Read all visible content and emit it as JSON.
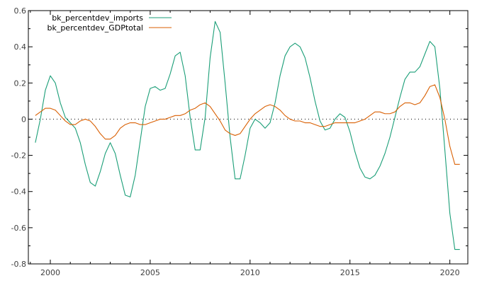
{
  "chart_data": {
    "type": "line",
    "title": "",
    "xlabel": "",
    "ylabel": "",
    "xlim": [
      1998.9,
      2020.9
    ],
    "ylim": [
      -0.8,
      0.6
    ],
    "x_ticks": [
      2000,
      2005,
      2010,
      2015,
      2020
    ],
    "y_ticks": [
      -0.8,
      -0.6,
      -0.4,
      -0.2,
      0,
      0.2,
      0.4,
      0.6
    ],
    "x_tick_labels": [
      "2000",
      "2005",
      "2010",
      "2015",
      "2020"
    ],
    "y_tick_labels": [
      "-0.8",
      "-0.6",
      "-0.4",
      "-0.2",
      "0",
      "0.2",
      "0.4",
      "0.6"
    ],
    "grid": false,
    "zero_line": "dotted",
    "legend_position": "top-left",
    "series": [
      {
        "name": "bk_percentdev_imports",
        "color": "#1a9e77",
        "points": [
          [
            1999.25,
            -0.13
          ],
          [
            1999.5,
            0.0
          ],
          [
            1999.75,
            0.16
          ],
          [
            2000.0,
            0.24
          ],
          [
            2000.25,
            0.2
          ],
          [
            2000.5,
            0.09
          ],
          [
            2000.75,
            0.01
          ],
          [
            2001.0,
            -0.02
          ],
          [
            2001.25,
            -0.05
          ],
          [
            2001.5,
            -0.13
          ],
          [
            2001.75,
            -0.25
          ],
          [
            2002.0,
            -0.35
          ],
          [
            2002.25,
            -0.37
          ],
          [
            2002.5,
            -0.29
          ],
          [
            2002.75,
            -0.19
          ],
          [
            2003.0,
            -0.13
          ],
          [
            2003.25,
            -0.19
          ],
          [
            2003.5,
            -0.31
          ],
          [
            2003.75,
            -0.42
          ],
          [
            2004.0,
            -0.43
          ],
          [
            2004.25,
            -0.31
          ],
          [
            2004.5,
            -0.12
          ],
          [
            2004.75,
            0.07
          ],
          [
            2005.0,
            0.17
          ],
          [
            2005.25,
            0.18
          ],
          [
            2005.5,
            0.16
          ],
          [
            2005.75,
            0.17
          ],
          [
            2006.0,
            0.25
          ],
          [
            2006.25,
            0.35
          ],
          [
            2006.5,
            0.37
          ],
          [
            2006.75,
            0.24
          ],
          [
            2007.0,
            0.01
          ],
          [
            2007.25,
            -0.17
          ],
          [
            2007.5,
            -0.17
          ],
          [
            2007.75,
            0.01
          ],
          [
            2008.0,
            0.34
          ],
          [
            2008.25,
            0.54
          ],
          [
            2008.5,
            0.48
          ],
          [
            2008.75,
            0.2
          ],
          [
            2009.0,
            -0.1
          ],
          [
            2009.25,
            -0.33
          ],
          [
            2009.5,
            -0.33
          ],
          [
            2009.75,
            -0.2
          ],
          [
            2010.0,
            -0.05
          ],
          [
            2010.25,
            0.0
          ],
          [
            2010.5,
            -0.02
          ],
          [
            2010.75,
            -0.05
          ],
          [
            2011.0,
            -0.02
          ],
          [
            2011.25,
            0.09
          ],
          [
            2011.5,
            0.24
          ],
          [
            2011.75,
            0.35
          ],
          [
            2012.0,
            0.4
          ],
          [
            2012.25,
            0.42
          ],
          [
            2012.5,
            0.4
          ],
          [
            2012.75,
            0.34
          ],
          [
            2013.0,
            0.23
          ],
          [
            2013.25,
            0.1
          ],
          [
            2013.5,
            -0.01
          ],
          [
            2013.75,
            -0.06
          ],
          [
            2014.0,
            -0.05
          ],
          [
            2014.25,
            0.0
          ],
          [
            2014.5,
            0.03
          ],
          [
            2014.75,
            0.01
          ],
          [
            2015.0,
            -0.07
          ],
          [
            2015.25,
            -0.18
          ],
          [
            2015.5,
            -0.27
          ],
          [
            2015.75,
            -0.32
          ],
          [
            2016.0,
            -0.33
          ],
          [
            2016.25,
            -0.31
          ],
          [
            2016.5,
            -0.26
          ],
          [
            2016.75,
            -0.19
          ],
          [
            2017.0,
            -0.1
          ],
          [
            2017.25,
            0.01
          ],
          [
            2017.5,
            0.12
          ],
          [
            2017.75,
            0.22
          ],
          [
            2018.0,
            0.26
          ],
          [
            2018.25,
            0.26
          ],
          [
            2018.5,
            0.29
          ],
          [
            2018.75,
            0.36
          ],
          [
            2019.0,
            0.43
          ],
          [
            2019.25,
            0.4
          ],
          [
            2019.5,
            0.17
          ],
          [
            2019.75,
            -0.17
          ],
          [
            2020.0,
            -0.52
          ],
          [
            2020.25,
            -0.72
          ],
          [
            2020.5,
            -0.72
          ]
        ]
      },
      {
        "name": "bk_percentdev_GDPtotal",
        "color": "#d95f02",
        "points": [
          [
            1999.25,
            0.02
          ],
          [
            1999.5,
            0.04
          ],
          [
            1999.75,
            0.06
          ],
          [
            2000.0,
            0.06
          ],
          [
            2000.25,
            0.05
          ],
          [
            2000.5,
            0.02
          ],
          [
            2000.75,
            -0.01
          ],
          [
            2001.0,
            -0.03
          ],
          [
            2001.25,
            -0.03
          ],
          [
            2001.5,
            -0.01
          ],
          [
            2001.75,
            0.0
          ],
          [
            2002.0,
            -0.01
          ],
          [
            2002.25,
            -0.04
          ],
          [
            2002.5,
            -0.08
          ],
          [
            2002.75,
            -0.11
          ],
          [
            2003.0,
            -0.11
          ],
          [
            2003.25,
            -0.09
          ],
          [
            2003.5,
            -0.05
          ],
          [
            2003.75,
            -0.03
          ],
          [
            2004.0,
            -0.02
          ],
          [
            2004.25,
            -0.02
          ],
          [
            2004.5,
            -0.03
          ],
          [
            2004.75,
            -0.03
          ],
          [
            2005.0,
            -0.02
          ],
          [
            2005.25,
            -0.01
          ],
          [
            2005.5,
            0.0
          ],
          [
            2005.75,
            0.0
          ],
          [
            2006.0,
            0.01
          ],
          [
            2006.25,
            0.02
          ],
          [
            2006.5,
            0.02
          ],
          [
            2006.75,
            0.03
          ],
          [
            2007.0,
            0.05
          ],
          [
            2007.25,
            0.06
          ],
          [
            2007.5,
            0.08
          ],
          [
            2007.75,
            0.09
          ],
          [
            2008.0,
            0.07
          ],
          [
            2008.25,
            0.03
          ],
          [
            2008.5,
            -0.01
          ],
          [
            2008.75,
            -0.06
          ],
          [
            2009.0,
            -0.08
          ],
          [
            2009.25,
            -0.09
          ],
          [
            2009.5,
            -0.08
          ],
          [
            2009.75,
            -0.04
          ],
          [
            2010.0,
            0.0
          ],
          [
            2010.25,
            0.03
          ],
          [
            2010.5,
            0.05
          ],
          [
            2010.75,
            0.07
          ],
          [
            2011.0,
            0.08
          ],
          [
            2011.25,
            0.07
          ],
          [
            2011.5,
            0.05
          ],
          [
            2011.75,
            0.02
          ],
          [
            2012.0,
            0.0
          ],
          [
            2012.25,
            -0.01
          ],
          [
            2012.5,
            -0.01
          ],
          [
            2012.75,
            -0.02
          ],
          [
            2013.0,
            -0.02
          ],
          [
            2013.25,
            -0.03
          ],
          [
            2013.5,
            -0.04
          ],
          [
            2013.75,
            -0.04
          ],
          [
            2014.0,
            -0.03
          ],
          [
            2014.25,
            -0.02
          ],
          [
            2014.5,
            -0.02
          ],
          [
            2014.75,
            -0.02
          ],
          [
            2015.0,
            -0.02
          ],
          [
            2015.25,
            -0.02
          ],
          [
            2015.5,
            -0.01
          ],
          [
            2015.75,
            0.0
          ],
          [
            2016.0,
            0.02
          ],
          [
            2016.25,
            0.04
          ],
          [
            2016.5,
            0.04
          ],
          [
            2016.75,
            0.03
          ],
          [
            2017.0,
            0.03
          ],
          [
            2017.25,
            0.04
          ],
          [
            2017.5,
            0.07
          ],
          [
            2017.75,
            0.09
          ],
          [
            2018.0,
            0.09
          ],
          [
            2018.25,
            0.08
          ],
          [
            2018.5,
            0.09
          ],
          [
            2018.75,
            0.13
          ],
          [
            2019.0,
            0.18
          ],
          [
            2019.25,
            0.19
          ],
          [
            2019.5,
            0.12
          ],
          [
            2019.75,
            0.0
          ],
          [
            2020.0,
            -0.15
          ],
          [
            2020.25,
            -0.25
          ],
          [
            2020.5,
            -0.25
          ]
        ]
      }
    ]
  }
}
